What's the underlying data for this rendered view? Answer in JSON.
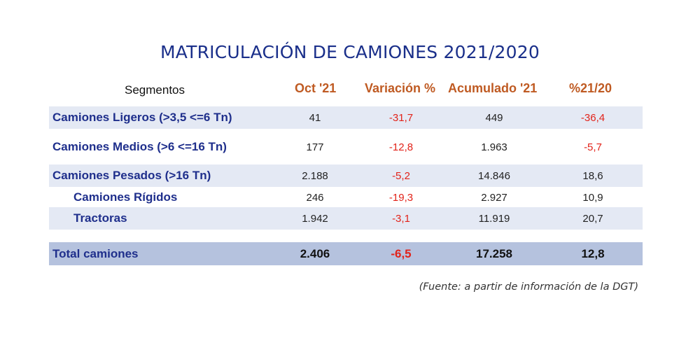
{
  "title": "MATRICULACIÓN DE CAMIONES 2021/2020",
  "headers": {
    "segmentos": "Segmentos",
    "oct": "Oct '21",
    "variacion": "Variación %",
    "acumulado": "Acumulado '21",
    "pct": "%21/20"
  },
  "rows": [
    {
      "label": "Camiones Ligeros (>3,5 <=6 Tn)",
      "oct": "41",
      "variacion": "-31,7",
      "acumulado": "449",
      "pct": "-36,4"
    },
    {
      "label": "Camiones Medios (>6 <=16 Tn)",
      "oct": "177",
      "variacion": "-12,8",
      "acumulado": "1.963",
      "pct": "-5,7"
    },
    {
      "label": "Camiones Pesados (>16 Tn)",
      "oct": "2.188",
      "variacion": "-5,2",
      "acumulado": "14.846",
      "pct": "18,6"
    },
    {
      "label": "Camiones Rígidos",
      "oct": "246",
      "variacion": "-19,3",
      "acumulado": "2.927",
      "pct": "10,9"
    },
    {
      "label": "Tractoras",
      "oct": "1.942",
      "variacion": "-3,1",
      "acumulado": "11.919",
      "pct": "20,7"
    }
  ],
  "total": {
    "label": "Total camiones",
    "oct": "2.406",
    "variacion": "-6,5",
    "acumulado": "17.258",
    "pct": "12,8"
  },
  "source": "(Fuente: a partir de información de la DGT)",
  "colors": {
    "title": "#1a2f8a",
    "header_orange": "#bf5a22",
    "negative_red": "#e2231a",
    "row_shade": "#e4e9f4",
    "total_shade": "#b5c2de"
  }
}
